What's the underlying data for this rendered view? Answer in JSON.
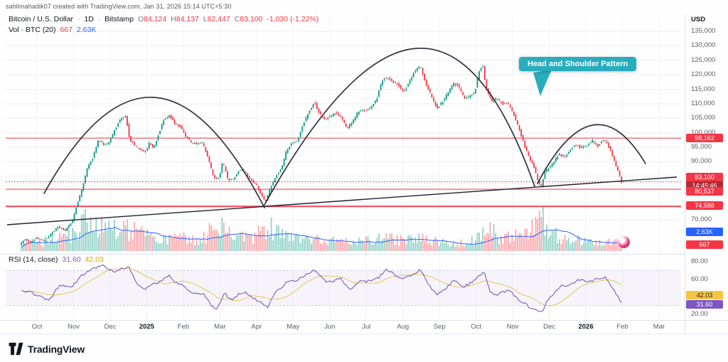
{
  "attribution": "sahlimahadik07 created with TradingView.com, Jan 31, 2026 15:14 UTC+5:30",
  "symbol": {
    "title": "Bitcoin / U.S. Dollar",
    "separator": "·",
    "interval": "1D",
    "exchange": "Bitstamp",
    "ohlc": [
      {
        "label": "O",
        "value": "84,124"
      },
      {
        "label": "H",
        "value": "84,137"
      },
      {
        "label": "L",
        "value": "82,447"
      },
      {
        "label": "C",
        "value": "83,100"
      }
    ],
    "change": "-1,030 (-1.22%)"
  },
  "volume_indicator": {
    "label": "Vol · BTC (20)",
    "current": "667",
    "ma": "2.63K"
  },
  "rsi_indicator": {
    "label": "RSI (14, close)",
    "value": "31.60",
    "ma_value": "42.03"
  },
  "callout": {
    "text": "Head and Shoulder Pattern",
    "color": "#28adbd"
  },
  "price_axis": {
    "unit": "USD",
    "ticks": [
      {
        "label": "135,000",
        "price": 135000
      },
      {
        "label": "130,000",
        "price": 130000
      },
      {
        "label": "125,000",
        "price": 125000
      },
      {
        "label": "120,000",
        "price": 120000
      },
      {
        "label": "115,000",
        "price": 115000
      },
      {
        "label": "110,000",
        "price": 110000
      },
      {
        "label": "105,000",
        "price": 105000
      },
      {
        "label": "100,000",
        "price": 100000
      },
      {
        "label": "95,000",
        "price": 95000
      },
      {
        "label": "90,000",
        "price": 90000
      },
      {
        "label": "85,000",
        "price": 85000
      },
      {
        "label": "80,000",
        "price": 80000
      },
      {
        "label": "75,000",
        "price": 75000
      },
      {
        "label": "70,000",
        "price": 70000
      }
    ],
    "tags": [
      {
        "text": "98,162",
        "price": 98162,
        "color": "#f23645",
        "nudge": -6
      },
      {
        "text": "83,100",
        "price": 83100,
        "color": "#f23645",
        "nudge": -13,
        "countdown": "14:45:46",
        "countdown_color": "#b02a35"
      },
      {
        "text": "80,537",
        "price": 80537,
        "color": "#f23645",
        "nudge": -3
      },
      {
        "text": "74,588",
        "price": 74588,
        "color": "#f23645",
        "nudge": -7
      }
    ],
    "volume_tags": [
      {
        "text": "2.63K",
        "color": "#2962ff"
      },
      {
        "text": "667",
        "color": "#f23645"
      }
    ]
  },
  "rsi_axis": {
    "ticks": [
      {
        "label": "80.00",
        "v": 80
      },
      {
        "label": "60.00",
        "v": 60
      },
      {
        "label": "40.00",
        "v": 40
      },
      {
        "label": "20.00",
        "v": 20
      }
    ],
    "tags": [
      {
        "text": "42.03",
        "bg": "#f5c542",
        "fg": "#1b1f27",
        "v": 42.03
      },
      {
        "text": "31.60",
        "bg": "#7e57c2",
        "fg": "#ffffff",
        "v": 31.6
      }
    ]
  },
  "time_axis": [
    {
      "label": "Oct",
      "m": 0
    },
    {
      "label": "Nov",
      "m": 1
    },
    {
      "label": "Dec",
      "m": 2
    },
    {
      "label": "2025",
      "m": 3,
      "bold": true
    },
    {
      "label": "Feb",
      "m": 4
    },
    {
      "label": "Mar",
      "m": 5
    },
    {
      "label": "Apr",
      "m": 6
    },
    {
      "label": "May",
      "m": 7
    },
    {
      "label": "Jun",
      "m": 8
    },
    {
      "label": "Jul",
      "m": 9
    },
    {
      "label": "Aug",
      "m": 10
    },
    {
      "label": "Sep",
      "m": 11
    },
    {
      "label": "Oct",
      "m": 12
    },
    {
      "label": "Nov",
      "m": 13
    },
    {
      "label": "Dec",
      "m": 14
    },
    {
      "label": "2026",
      "m": 15,
      "bold": true
    },
    {
      "label": "Feb",
      "m": 16
    },
    {
      "label": "Mar",
      "m": 17
    }
  ],
  "logo": {
    "text": "TradingView"
  },
  "chart_data": {
    "type": "candlestick",
    "title": "Bitcoin / U.S. Dollar 1D Bitstamp with Head and Shoulders pattern, Volume and RSI",
    "ylim": [
      70000,
      135000
    ],
    "rsi_range": [
      20,
      80
    ],
    "current_price": 83100,
    "levels": [
      {
        "price": 98162,
        "color": "#f23645",
        "width": 1.2
      },
      {
        "price": 80537,
        "color": "#f23645",
        "width": 1.2
      },
      {
        "price": 74588,
        "color": "#f23645",
        "width": 2
      }
    ],
    "price_path": [
      [
        -0.45,
        61500
      ],
      [
        -0.3,
        63200
      ],
      [
        -0.15,
        62200
      ],
      [
        0,
        63900
      ],
      [
        0.2,
        62600
      ],
      [
        0.4,
        64900
      ],
      [
        0.6,
        67600
      ],
      [
        0.8,
        66300
      ],
      [
        1,
        69900
      ],
      [
        1.1,
        74500
      ],
      [
        1.25,
        80400
      ],
      [
        1.4,
        88100
      ],
      [
        1.55,
        91100
      ],
      [
        1.7,
        97400
      ],
      [
        1.85,
        95900
      ],
      [
        2,
        96600
      ],
      [
        2.15,
        101200
      ],
      [
        2.3,
        104500
      ],
      [
        2.45,
        106100
      ],
      [
        2.55,
        97900
      ],
      [
        2.7,
        95400
      ],
      [
        2.85,
        94200
      ],
      [
        3,
        93600
      ],
      [
        3.1,
        96900
      ],
      [
        3.2,
        94500
      ],
      [
        3.35,
        99600
      ],
      [
        3.5,
        104800
      ],
      [
        3.65,
        106100
      ],
      [
        3.8,
        102900
      ],
      [
        3.95,
        102100
      ],
      [
        4.1,
        98700
      ],
      [
        4.25,
        96600
      ],
      [
        4.4,
        96200
      ],
      [
        4.55,
        96500
      ],
      [
        4.7,
        91600
      ],
      [
        4.85,
        84600
      ],
      [
        5,
        84400
      ],
      [
        5.1,
        90000
      ],
      [
        5.25,
        83600
      ],
      [
        5.4,
        84200
      ],
      [
        5.55,
        87400
      ],
      [
        5.7,
        86900
      ],
      [
        5.85,
        83800
      ],
      [
        6,
        82600
      ],
      [
        6.15,
        78600
      ],
      [
        6.27,
        76100
      ],
      [
        6.4,
        80800
      ],
      [
        6.55,
        84800
      ],
      [
        6.7,
        87600
      ],
      [
        6.85,
        94200
      ],
      [
        7,
        96500
      ],
      [
        7.15,
        97200
      ],
      [
        7.3,
        103300
      ],
      [
        7.45,
        106900
      ],
      [
        7.6,
        110800
      ],
      [
        7.75,
        106400
      ],
      [
        7.9,
        104800
      ],
      [
        8.05,
        105700
      ],
      [
        8.2,
        107200
      ],
      [
        8.35,
        105000
      ],
      [
        8.5,
        101600
      ],
      [
        8.65,
        103900
      ],
      [
        8.8,
        107400
      ],
      [
        9,
        107600
      ],
      [
        9.15,
        109000
      ],
      [
        9.3,
        111300
      ],
      [
        9.45,
        117900
      ],
      [
        9.6,
        119200
      ],
      [
        9.75,
        117700
      ],
      [
        9.9,
        116500
      ],
      [
        10.05,
        114000
      ],
      [
        10.2,
        117500
      ],
      [
        10.35,
        121200
      ],
      [
        10.5,
        122900
      ],
      [
        10.65,
        117000
      ],
      [
        10.8,
        112700
      ],
      [
        10.95,
        108500
      ],
      [
        11.1,
        110500
      ],
      [
        11.25,
        113900
      ],
      [
        11.4,
        117000
      ],
      [
        11.55,
        115900
      ],
      [
        11.7,
        112000
      ],
      [
        11.85,
        112400
      ],
      [
        12,
        114400
      ],
      [
        12.1,
        121100
      ],
      [
        12.2,
        123700
      ],
      [
        12.3,
        115300
      ],
      [
        12.45,
        110900
      ],
      [
        12.6,
        111700
      ],
      [
        12.75,
        110000
      ],
      [
        12.9,
        110200
      ],
      [
        13.05,
        106500
      ],
      [
        13.2,
        101400
      ],
      [
        13.35,
        95300
      ],
      [
        13.5,
        90900
      ],
      [
        13.62,
        87700
      ],
      [
        13.72,
        83000
      ],
      [
        13.8,
        81100
      ],
      [
        13.9,
        86400
      ],
      [
        14,
        87700
      ],
      [
        14.15,
        90200
      ],
      [
        14.3,
        92700
      ],
      [
        14.45,
        91500
      ],
      [
        14.6,
        94400
      ],
      [
        14.75,
        95900
      ],
      [
        14.9,
        94700
      ],
      [
        15.05,
        95700
      ],
      [
        15.2,
        97400
      ],
      [
        15.35,
        95300
      ],
      [
        15.5,
        97700
      ],
      [
        15.6,
        96400
      ],
      [
        15.72,
        93300
      ],
      [
        15.84,
        88700
      ],
      [
        15.93,
        85700
      ],
      [
        16,
        83100
      ]
    ],
    "volume_path": [
      [
        -0.45,
        0.18
      ],
      [
        0,
        0.2
      ],
      [
        0.5,
        0.24
      ],
      [
        1,
        0.42
      ],
      [
        1.3,
        0.65
      ],
      [
        1.6,
        0.5
      ],
      [
        2,
        0.46
      ],
      [
        2.4,
        0.5
      ],
      [
        2.8,
        0.4
      ],
      [
        3.2,
        0.33
      ],
      [
        3.6,
        0.3
      ],
      [
        4,
        0.28
      ],
      [
        4.5,
        0.26
      ],
      [
        4.8,
        0.58
      ],
      [
        5.1,
        0.5
      ],
      [
        5.5,
        0.3
      ],
      [
        6,
        0.36
      ],
      [
        6.3,
        0.62
      ],
      [
        6.6,
        0.36
      ],
      [
        7,
        0.28
      ],
      [
        7.5,
        0.25
      ],
      [
        8,
        0.22
      ],
      [
        8.5,
        0.2
      ],
      [
        9,
        0.22
      ],
      [
        9.5,
        0.28
      ],
      [
        10,
        0.23
      ],
      [
        10.5,
        0.28
      ],
      [
        11,
        0.2
      ],
      [
        11.5,
        0.18
      ],
      [
        12,
        0.26
      ],
      [
        12.25,
        0.56
      ],
      [
        12.6,
        0.3
      ],
      [
        13,
        0.3
      ],
      [
        13.4,
        0.46
      ],
      [
        13.72,
        0.6
      ],
      [
        13.8,
        1
      ],
      [
        13.88,
        0.5
      ],
      [
        14,
        0.38
      ],
      [
        14.5,
        0.26
      ],
      [
        15,
        0.2
      ],
      [
        15.5,
        0.22
      ],
      [
        16,
        0.3
      ]
    ],
    "rsi_path": [
      [
        -0.45,
        48
      ],
      [
        0,
        42
      ],
      [
        0.3,
        35
      ],
      [
        0.6,
        54
      ],
      [
        0.9,
        50
      ],
      [
        1.2,
        65
      ],
      [
        1.5,
        72
      ],
      [
        1.8,
        76
      ],
      [
        2.1,
        68
      ],
      [
        2.3,
        72
      ],
      [
        2.5,
        74
      ],
      [
        2.7,
        54
      ],
      [
        2.9,
        48
      ],
      [
        3.1,
        53
      ],
      [
        3.3,
        57
      ],
      [
        3.6,
        64
      ],
      [
        3.8,
        55
      ],
      [
        4,
        52
      ],
      [
        4.2,
        45
      ],
      [
        4.5,
        44
      ],
      [
        4.75,
        30
      ],
      [
        4.9,
        26
      ],
      [
        5.1,
        44
      ],
      [
        5.3,
        36
      ],
      [
        5.5,
        43
      ],
      [
        5.7,
        45
      ],
      [
        5.9,
        38
      ],
      [
        6.1,
        33
      ],
      [
        6.27,
        28
      ],
      [
        6.5,
        45
      ],
      [
        6.8,
        56
      ],
      [
        7,
        58
      ],
      [
        7.3,
        64
      ],
      [
        7.6,
        71
      ],
      [
        7.8,
        59
      ],
      [
        8,
        57
      ],
      [
        8.3,
        61
      ],
      [
        8.5,
        48
      ],
      [
        8.8,
        58
      ],
      [
        9,
        57
      ],
      [
        9.3,
        61
      ],
      [
        9.5,
        71
      ],
      [
        9.7,
        67
      ],
      [
        9.9,
        60
      ],
      [
        10.2,
        64
      ],
      [
        10.45,
        71
      ],
      [
        10.7,
        52
      ],
      [
        10.9,
        43
      ],
      [
        11.1,
        48
      ],
      [
        11.4,
        60
      ],
      [
        11.6,
        51
      ],
      [
        11.8,
        55
      ],
      [
        12.1,
        65
      ],
      [
        12.2,
        70
      ],
      [
        12.35,
        45
      ],
      [
        12.5,
        42
      ],
      [
        12.7,
        45
      ],
      [
        12.9,
        47
      ],
      [
        13.1,
        38
      ],
      [
        13.3,
        32
      ],
      [
        13.6,
        25
      ],
      [
        13.78,
        22
      ],
      [
        13.9,
        34
      ],
      [
        14.1,
        44
      ],
      [
        14.3,
        52
      ],
      [
        14.6,
        55
      ],
      [
        14.8,
        60
      ],
      [
        15,
        56
      ],
      [
        15.25,
        60
      ],
      [
        15.5,
        62
      ],
      [
        15.7,
        50
      ],
      [
        15.85,
        40
      ],
      [
        16,
        31.6
      ]
    ],
    "pattern_arcs": [
      "M 62 272 Q 217 -8 372 292",
      "M 372 288 Q 610 -139 752 262",
      "M 756 258 Q 835 108 908 230"
    ],
    "neckline": [
      10,
      316,
      952,
      249
    ],
    "colors": {
      "up": "#089981",
      "down": "#f23645",
      "vol_ma": "#2962ff",
      "rsi": "#7e57c2",
      "rsi_ma": "#e5c558",
      "trend": "#1e222d"
    }
  }
}
